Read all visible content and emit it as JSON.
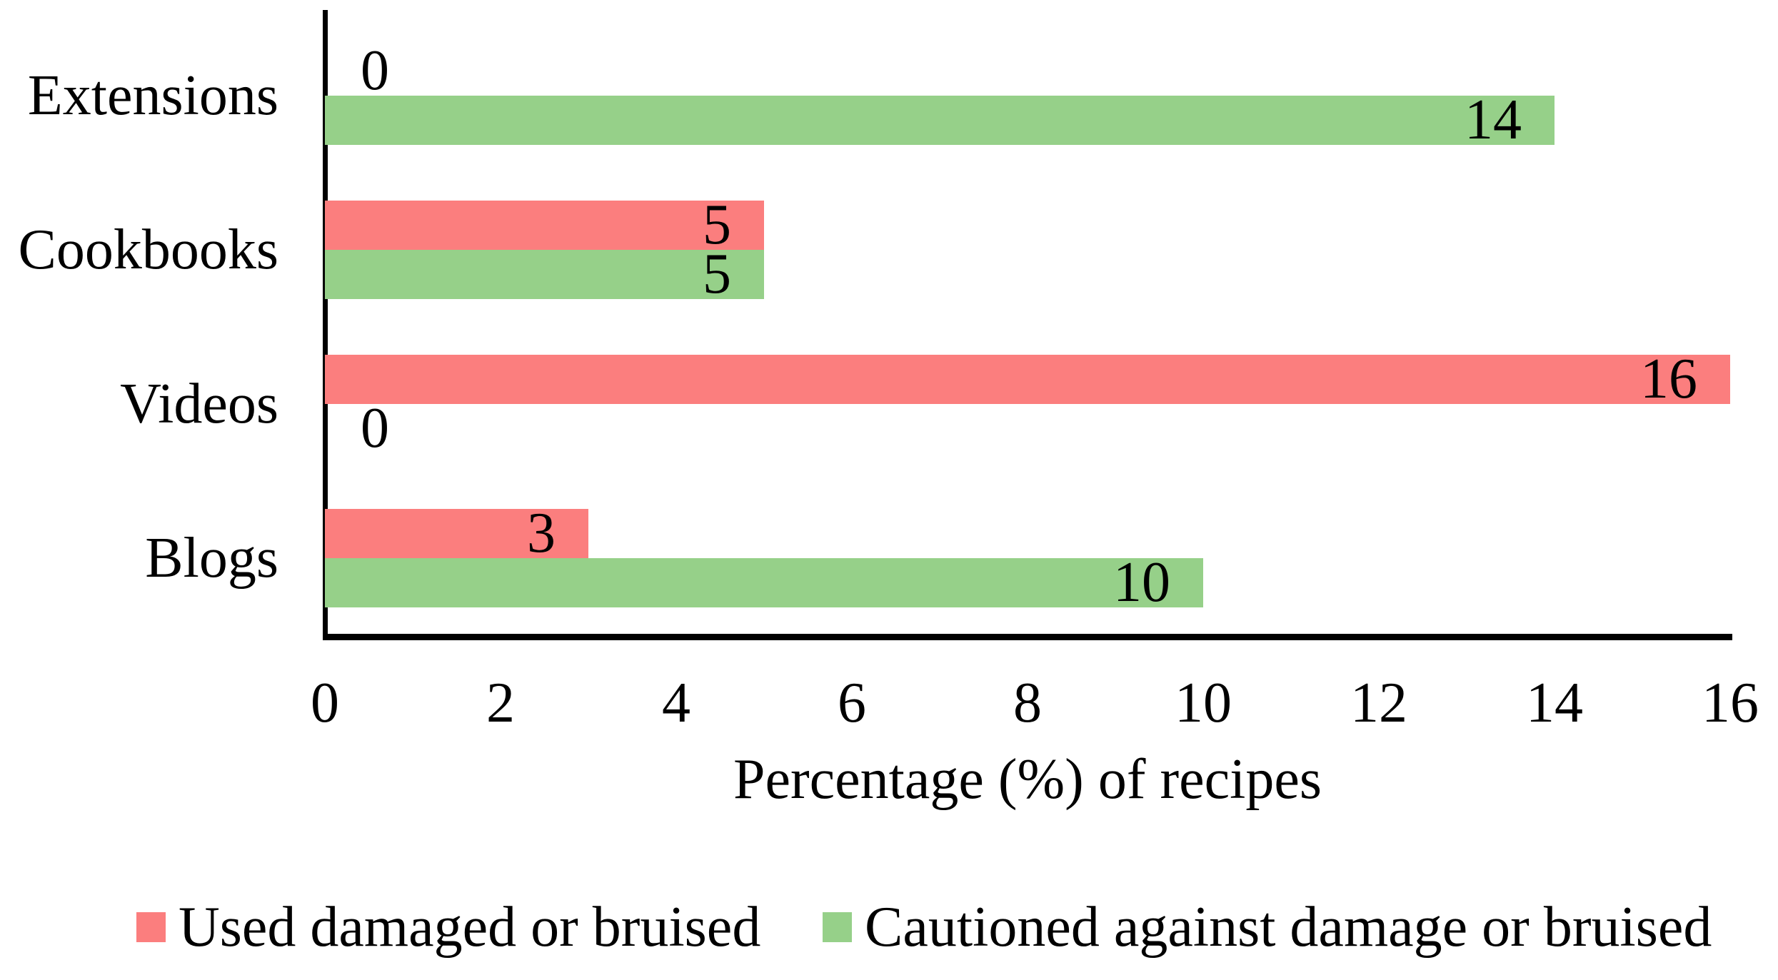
{
  "chart_data": {
    "type": "bar",
    "orientation": "horizontal",
    "title": "",
    "categories": [
      "Extensions",
      "Cookbooks",
      "Videos",
      "Blogs"
    ],
    "series": [
      {
        "name": "Used damaged or bruised",
        "color": "#fb7e7e",
        "values": [
          0,
          5,
          16,
          3
        ]
      },
      {
        "name": "Cautioned against damage or bruised",
        "color": "#96d089",
        "values": [
          14,
          5,
          0,
          10
        ]
      }
    ],
    "xlabel": "Percentage (%) of recipes",
    "xlim": [
      0,
      16
    ],
    "xticks": [
      0,
      2,
      4,
      6,
      8,
      10,
      12,
      14,
      16
    ],
    "value_labels": [
      [
        "0",
        "5",
        "16",
        "3"
      ],
      [
        "14",
        "5",
        "0",
        "10"
      ]
    ],
    "grid": false,
    "legend_position": "bottom",
    "axis_color": "#000000",
    "text_color": "#000000"
  }
}
